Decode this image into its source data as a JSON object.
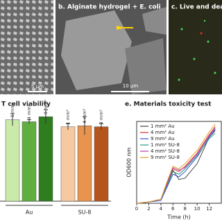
{
  "panels": [
    {
      "scale": "5 µm"
    },
    {
      "title": "b. Alginate hydrogel + E. coli",
      "scale": "10 µm"
    },
    {
      "title": "c. Live and dead"
    }
  ],
  "chart_data": [
    {
      "type": "bar",
      "title": "T cell viability",
      "categories": [
        "1 mm²",
        "4 mm²",
        "9 mm²",
        "1 mm²",
        "4 mm²",
        "9 mm²"
      ],
      "groups": [
        "Au",
        "SU-8"
      ],
      "values": [
        81,
        79,
        84,
        74,
        75,
        74
      ],
      "errors": [
        6,
        2,
        7,
        3,
        9,
        3
      ],
      "colors": [
        "#c9eaa8",
        "#5fae3f",
        "#2e7d1f",
        "#f6c9a0",
        "#e8944f",
        "#b5541c"
      ],
      "ylim": [
        0,
        100
      ]
    },
    {
      "type": "line",
      "title": "e. Materials toxicity test",
      "xlabel": "Time (h)",
      "ylabel": "OD600 nm",
      "x": [
        0,
        2,
        4,
        5,
        6,
        7,
        8,
        10,
        12,
        13
      ],
      "series": [
        {
          "name": "1 mm² Au",
          "color": "#444444",
          "values": [
            0,
            0.01,
            0.03,
            0.14,
            0.25,
            0.18,
            0.19,
            0.3,
            0.5,
            0.55
          ]
        },
        {
          "name": "4 mm² Au",
          "color": "#e03030",
          "values": [
            0,
            0.01,
            0.03,
            0.15,
            0.26,
            0.24,
            0.28,
            0.38,
            0.52,
            0.58
          ]
        },
        {
          "name": "9 mm² Au",
          "color": "#3050d0",
          "values": [
            0,
            0.01,
            0.02,
            0.12,
            0.22,
            0.2,
            0.24,
            0.35,
            0.5,
            0.56
          ]
        },
        {
          "name": "1 mm² SU-8",
          "color": "#20a080",
          "values": [
            0,
            0.01,
            0.03,
            0.13,
            0.24,
            0.22,
            0.26,
            0.36,
            0.49,
            0.53
          ]
        },
        {
          "name": "4 mm² SU-8",
          "color": "#b040b0",
          "values": [
            0,
            0.01,
            0.03,
            0.14,
            0.27,
            0.25,
            0.27,
            0.37,
            0.51,
            0.57
          ]
        },
        {
          "name": "9 mm² SU-8",
          "color": "#e0a020",
          "values": [
            0,
            0.01,
            0.03,
            0.16,
            0.28,
            0.26,
            0.3,
            0.4,
            0.54,
            0.6
          ]
        }
      ],
      "xlim": [
        0,
        14
      ],
      "xticks": [
        0,
        2,
        4,
        6,
        8,
        10,
        12
      ],
      "ylim": [
        0,
        0.62
      ]
    }
  ]
}
